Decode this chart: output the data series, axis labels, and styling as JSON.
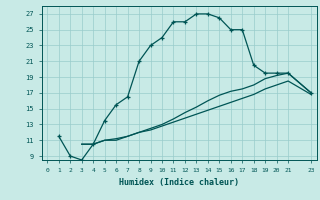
{
  "title": "",
  "xlabel": "Humidex (Indice chaleur)",
  "bg_color": "#c8eae6",
  "line_color": "#005555",
  "grid_color": "#99cccc",
  "xlim": [
    -0.5,
    23.5
  ],
  "ylim": [
    8.5,
    28.0
  ],
  "xticks": [
    0,
    1,
    2,
    3,
    4,
    5,
    6,
    7,
    8,
    9,
    10,
    11,
    12,
    13,
    14,
    15,
    16,
    17,
    18,
    19,
    20,
    21,
    23
  ],
  "yticks": [
    9,
    11,
    13,
    15,
    17,
    19,
    21,
    23,
    25,
    27
  ],
  "line1_x": [
    1,
    2,
    3,
    4,
    5,
    6,
    7,
    8,
    9,
    10,
    11,
    12,
    13,
    14,
    15,
    16,
    17,
    18,
    19,
    20,
    21,
    23
  ],
  "line1_y": [
    11.5,
    9.0,
    8.5,
    10.5,
    13.5,
    15.5,
    16.5,
    21.0,
    23.0,
    24.0,
    26.0,
    26.0,
    27.0,
    27.0,
    26.5,
    25.0,
    25.0,
    20.5,
    19.5,
    19.5,
    19.5,
    17.0
  ],
  "line2_x": [
    3,
    4,
    5,
    6,
    7,
    8,
    9,
    10,
    11,
    12,
    13,
    14,
    15,
    16,
    17,
    18,
    19,
    20,
    21,
    23
  ],
  "line2_y": [
    10.5,
    10.5,
    11.0,
    11.2,
    11.5,
    12.0,
    12.5,
    13.0,
    13.7,
    14.5,
    15.2,
    16.0,
    16.7,
    17.2,
    17.5,
    18.0,
    18.8,
    19.2,
    19.5,
    17.0
  ],
  "line3_x": [
    3,
    4,
    5,
    6,
    7,
    8,
    9,
    10,
    11,
    12,
    13,
    14,
    15,
    16,
    17,
    18,
    19,
    20,
    21,
    23
  ],
  "line3_y": [
    10.5,
    10.5,
    11.0,
    11.0,
    11.5,
    12.0,
    12.3,
    12.8,
    13.3,
    13.8,
    14.3,
    14.8,
    15.3,
    15.8,
    16.3,
    16.8,
    17.5,
    18.0,
    18.5,
    16.8
  ]
}
